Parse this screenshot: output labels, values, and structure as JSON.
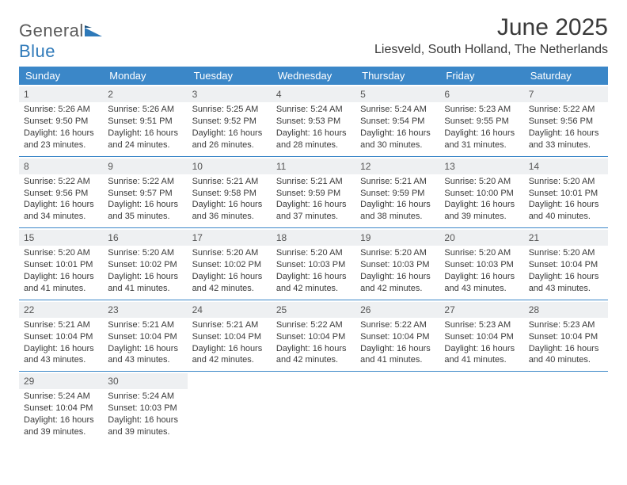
{
  "brand": {
    "part1": "General",
    "part2": "Blue"
  },
  "title": "June 2025",
  "location": "Liesveld, South Holland, The Netherlands",
  "colors": {
    "header_bg": "#3b87c8",
    "header_text": "#ffffff",
    "daynum_bg": "#eef0f2",
    "border": "#3b87c8",
    "text": "#3a3a3a",
    "brand_gray": "#5a5a5a",
    "brand_blue": "#2e79b9"
  },
  "typography": {
    "title_fontsize": 30,
    "location_fontsize": 16,
    "header_fontsize": 13,
    "cell_fontsize": 11,
    "daynum_fontsize": 12
  },
  "daysOfWeek": [
    "Sunday",
    "Monday",
    "Tuesday",
    "Wednesday",
    "Thursday",
    "Friday",
    "Saturday"
  ],
  "weeks": [
    [
      {
        "n": "1",
        "sr": "Sunrise: 5:26 AM",
        "ss": "Sunset: 9:50 PM",
        "dl": "Daylight: 16 hours and 23 minutes."
      },
      {
        "n": "2",
        "sr": "Sunrise: 5:26 AM",
        "ss": "Sunset: 9:51 PM",
        "dl": "Daylight: 16 hours and 24 minutes."
      },
      {
        "n": "3",
        "sr": "Sunrise: 5:25 AM",
        "ss": "Sunset: 9:52 PM",
        "dl": "Daylight: 16 hours and 26 minutes."
      },
      {
        "n": "4",
        "sr": "Sunrise: 5:24 AM",
        "ss": "Sunset: 9:53 PM",
        "dl": "Daylight: 16 hours and 28 minutes."
      },
      {
        "n": "5",
        "sr": "Sunrise: 5:24 AM",
        "ss": "Sunset: 9:54 PM",
        "dl": "Daylight: 16 hours and 30 minutes."
      },
      {
        "n": "6",
        "sr": "Sunrise: 5:23 AM",
        "ss": "Sunset: 9:55 PM",
        "dl": "Daylight: 16 hours and 31 minutes."
      },
      {
        "n": "7",
        "sr": "Sunrise: 5:22 AM",
        "ss": "Sunset: 9:56 PM",
        "dl": "Daylight: 16 hours and 33 minutes."
      }
    ],
    [
      {
        "n": "8",
        "sr": "Sunrise: 5:22 AM",
        "ss": "Sunset: 9:56 PM",
        "dl": "Daylight: 16 hours and 34 minutes."
      },
      {
        "n": "9",
        "sr": "Sunrise: 5:22 AM",
        "ss": "Sunset: 9:57 PM",
        "dl": "Daylight: 16 hours and 35 minutes."
      },
      {
        "n": "10",
        "sr": "Sunrise: 5:21 AM",
        "ss": "Sunset: 9:58 PM",
        "dl": "Daylight: 16 hours and 36 minutes."
      },
      {
        "n": "11",
        "sr": "Sunrise: 5:21 AM",
        "ss": "Sunset: 9:59 PM",
        "dl": "Daylight: 16 hours and 37 minutes."
      },
      {
        "n": "12",
        "sr": "Sunrise: 5:21 AM",
        "ss": "Sunset: 9:59 PM",
        "dl": "Daylight: 16 hours and 38 minutes."
      },
      {
        "n": "13",
        "sr": "Sunrise: 5:20 AM",
        "ss": "Sunset: 10:00 PM",
        "dl": "Daylight: 16 hours and 39 minutes."
      },
      {
        "n": "14",
        "sr": "Sunrise: 5:20 AM",
        "ss": "Sunset: 10:01 PM",
        "dl": "Daylight: 16 hours and 40 minutes."
      }
    ],
    [
      {
        "n": "15",
        "sr": "Sunrise: 5:20 AM",
        "ss": "Sunset: 10:01 PM",
        "dl": "Daylight: 16 hours and 41 minutes."
      },
      {
        "n": "16",
        "sr": "Sunrise: 5:20 AM",
        "ss": "Sunset: 10:02 PM",
        "dl": "Daylight: 16 hours and 41 minutes."
      },
      {
        "n": "17",
        "sr": "Sunrise: 5:20 AM",
        "ss": "Sunset: 10:02 PM",
        "dl": "Daylight: 16 hours and 42 minutes."
      },
      {
        "n": "18",
        "sr": "Sunrise: 5:20 AM",
        "ss": "Sunset: 10:03 PM",
        "dl": "Daylight: 16 hours and 42 minutes."
      },
      {
        "n": "19",
        "sr": "Sunrise: 5:20 AM",
        "ss": "Sunset: 10:03 PM",
        "dl": "Daylight: 16 hours and 42 minutes."
      },
      {
        "n": "20",
        "sr": "Sunrise: 5:20 AM",
        "ss": "Sunset: 10:03 PM",
        "dl": "Daylight: 16 hours and 43 minutes."
      },
      {
        "n": "21",
        "sr": "Sunrise: 5:20 AM",
        "ss": "Sunset: 10:04 PM",
        "dl": "Daylight: 16 hours and 43 minutes."
      }
    ],
    [
      {
        "n": "22",
        "sr": "Sunrise: 5:21 AM",
        "ss": "Sunset: 10:04 PM",
        "dl": "Daylight: 16 hours and 43 minutes."
      },
      {
        "n": "23",
        "sr": "Sunrise: 5:21 AM",
        "ss": "Sunset: 10:04 PM",
        "dl": "Daylight: 16 hours and 43 minutes."
      },
      {
        "n": "24",
        "sr": "Sunrise: 5:21 AM",
        "ss": "Sunset: 10:04 PM",
        "dl": "Daylight: 16 hours and 42 minutes."
      },
      {
        "n": "25",
        "sr": "Sunrise: 5:22 AM",
        "ss": "Sunset: 10:04 PM",
        "dl": "Daylight: 16 hours and 42 minutes."
      },
      {
        "n": "26",
        "sr": "Sunrise: 5:22 AM",
        "ss": "Sunset: 10:04 PM",
        "dl": "Daylight: 16 hours and 41 minutes."
      },
      {
        "n": "27",
        "sr": "Sunrise: 5:23 AM",
        "ss": "Sunset: 10:04 PM",
        "dl": "Daylight: 16 hours and 41 minutes."
      },
      {
        "n": "28",
        "sr": "Sunrise: 5:23 AM",
        "ss": "Sunset: 10:04 PM",
        "dl": "Daylight: 16 hours and 40 minutes."
      }
    ],
    [
      {
        "n": "29",
        "sr": "Sunrise: 5:24 AM",
        "ss": "Sunset: 10:04 PM",
        "dl": "Daylight: 16 hours and 39 minutes."
      },
      {
        "n": "30",
        "sr": "Sunrise: 5:24 AM",
        "ss": "Sunset: 10:03 PM",
        "dl": "Daylight: 16 hours and 39 minutes."
      },
      null,
      null,
      null,
      null,
      null
    ]
  ]
}
